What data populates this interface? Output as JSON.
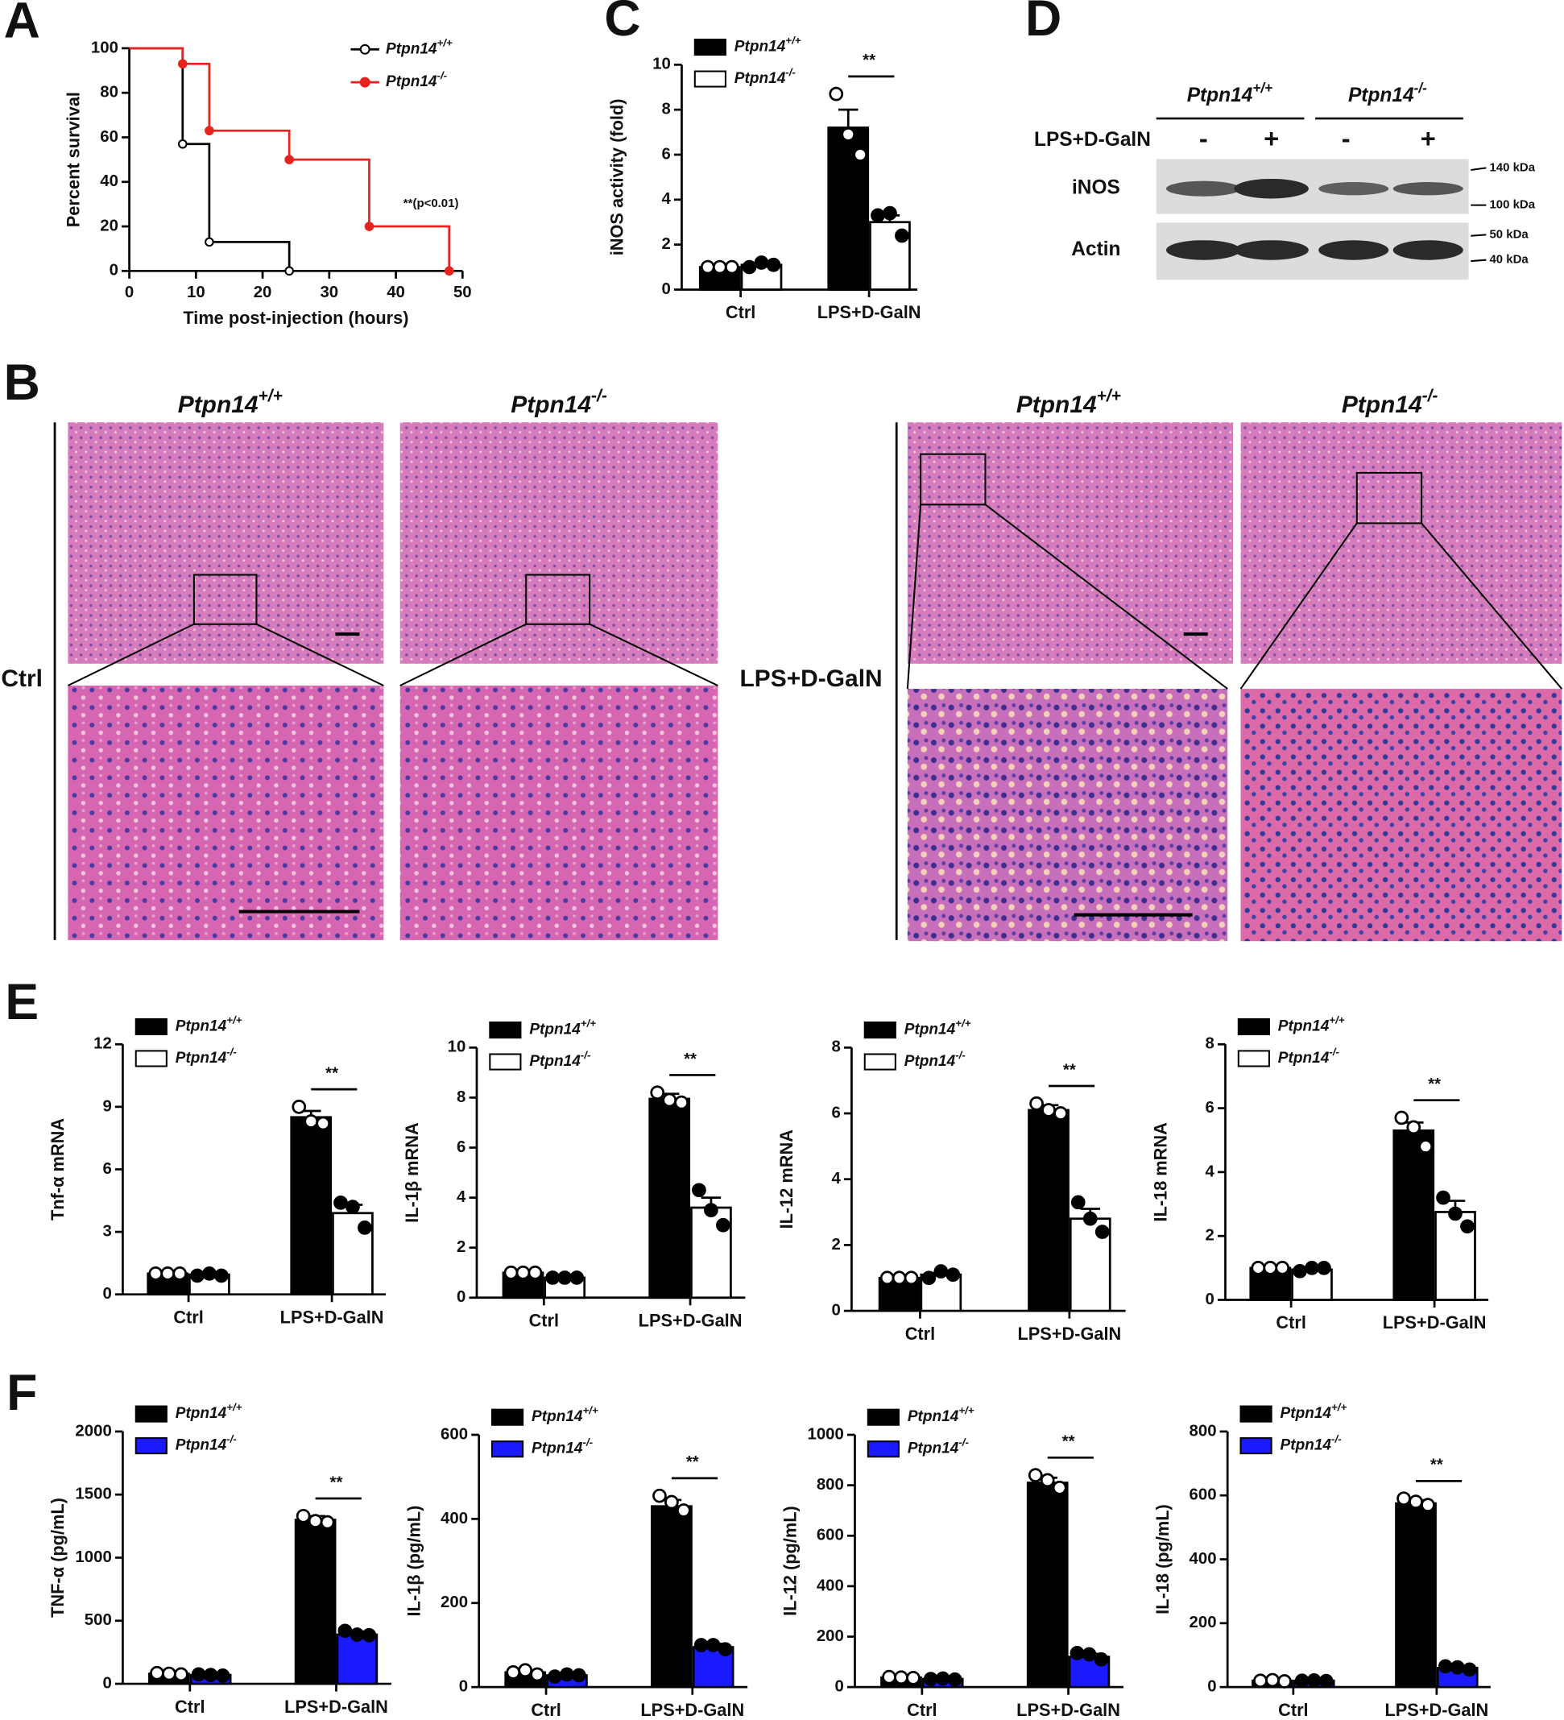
{
  "figure": {
    "panel_labels": [
      "A",
      "B",
      "C",
      "D",
      "E",
      "F"
    ]
  },
  "chart_data": [
    {
      "type": "line",
      "step": true,
      "xlabel": "Time post-injection (hours)",
      "ylabel": "Percent survival",
      "annotation": "**(p<0.01)",
      "xlim": [
        0,
        50
      ],
      "xticks": [
        0,
        10,
        20,
        30,
        40,
        50
      ],
      "ylim": [
        0,
        100
      ],
      "yticks": [
        0,
        20,
        40,
        60,
        80,
        100
      ],
      "series": [
        {
          "name": "Ptpn14+/+",
          "color": "#000000",
          "marker": "open",
          "x": [
            0,
            8,
            12,
            24
          ],
          "values": [
            100,
            57,
            13,
            0
          ]
        },
        {
          "name": "Ptpn14-/-",
          "color": "#e8221c",
          "marker": "filled",
          "x": [
            0,
            8,
            12,
            24,
            36,
            48
          ],
          "values": [
            100,
            93,
            63,
            50,
            20,
            0
          ]
        }
      ]
    },
    {
      "type": "bar",
      "ylabel": "iNOS activity (fold)",
      "significance": "**",
      "categories": [
        "Ctrl",
        "LPS+D-GalN"
      ],
      "ylim": [
        0,
        10
      ],
      "yticks": [
        0,
        2,
        4,
        6,
        8,
        10
      ],
      "series": [
        {
          "name": "Ptpn14+/+",
          "color": "#000000",
          "marker": "open",
          "values": [
            1,
            7.2
          ],
          "errors": [
            0.02,
            0.8
          ],
          "points": [
            [
              1,
              1,
              1
            ],
            [
              8.7,
              6.9,
              6.0
            ]
          ]
        },
        {
          "name": "Ptpn14-/-",
          "color": "#ffffff",
          "marker": "filled",
          "values": [
            1.1,
            3.0
          ],
          "errors": [
            0.05,
            0.3
          ],
          "points": [
            [
              1,
              1.2,
              1.1
            ],
            [
              3.3,
              3.4,
              2.4
            ]
          ]
        }
      ]
    },
    {
      "type": "bar",
      "ylabel": "Tnf-α mRNA",
      "significance": "**",
      "categories": [
        "Ctrl",
        "LPS+D-GalN"
      ],
      "ylim": [
        0,
        12
      ],
      "yticks": [
        0,
        3,
        6,
        9,
        12
      ],
      "series": [
        {
          "name": "Ptpn14+/+",
          "color": "#000000",
          "marker": "open",
          "values": [
            1,
            8.5
          ],
          "errors": [
            0.02,
            0.3
          ],
          "points": [
            [
              1,
              1,
              1
            ],
            [
              9,
              8.3,
              8.2
            ]
          ]
        },
        {
          "name": "Ptpn14-/-",
          "color": "#ffffff",
          "marker": "filled",
          "values": [
            0.95,
            3.9
          ],
          "errors": [
            0.05,
            0.4
          ],
          "points": [
            [
              0.9,
              1,
              0.9
            ],
            [
              4.4,
              4.2,
              3.2
            ]
          ]
        }
      ]
    },
    {
      "type": "bar",
      "ylabel": "IL-1β mRNA",
      "significance": "**",
      "categories": [
        "Ctrl",
        "LPS+D-GalN"
      ],
      "ylim": [
        0,
        10
      ],
      "yticks": [
        0,
        2,
        4,
        6,
        8,
        10
      ],
      "series": [
        {
          "name": "Ptpn14+/+",
          "color": "#000000",
          "marker": "open",
          "values": [
            1,
            7.95
          ],
          "errors": [
            0.02,
            0.2
          ],
          "points": [
            [
              1,
              1,
              1
            ],
            [
              8.2,
              7.9,
              7.8
            ]
          ]
        },
        {
          "name": "Ptpn14-/-",
          "color": "#ffffff",
          "marker": "filled",
          "values": [
            0.8,
            3.6
          ],
          "errors": [
            0.05,
            0.4
          ],
          "points": [
            [
              0.8,
              0.8,
              0.8
            ],
            [
              4.3,
              3.5,
              2.9
            ]
          ]
        }
      ]
    },
    {
      "type": "bar",
      "ylabel": "IL-12 mRNA",
      "significance": "**",
      "categories": [
        "Ctrl",
        "LPS+D-GalN"
      ],
      "ylim": [
        0,
        8
      ],
      "yticks": [
        0,
        2,
        4,
        6,
        8
      ],
      "series": [
        {
          "name": "Ptpn14+/+",
          "color": "#000000",
          "marker": "open",
          "values": [
            1,
            6.1
          ],
          "errors": [
            0.02,
            0.15
          ],
          "points": [
            [
              1,
              1,
              1
            ],
            [
              6.3,
              6.1,
              6.0
            ]
          ]
        },
        {
          "name": "Ptpn14-/-",
          "color": "#ffffff",
          "marker": "filled",
          "values": [
            1.1,
            2.8
          ],
          "errors": [
            0.05,
            0.3
          ],
          "points": [
            [
              1,
              1.2,
              1.1
            ],
            [
              3.3,
              2.8,
              2.4
            ]
          ]
        }
      ]
    },
    {
      "type": "bar",
      "ylabel": "IL-18 mRNA",
      "significance": "**",
      "categories": [
        "Ctrl",
        "LPS+D-GalN"
      ],
      "ylim": [
        0,
        8
      ],
      "yticks": [
        0,
        2,
        4,
        6,
        8
      ],
      "series": [
        {
          "name": "Ptpn14+/+",
          "color": "#000000",
          "marker": "open",
          "values": [
            1,
            5.3
          ],
          "errors": [
            0.02,
            0.25
          ],
          "points": [
            [
              1,
              1,
              1
            ],
            [
              5.7,
              5.4,
              4.8
            ]
          ]
        },
        {
          "name": "Ptpn14-/-",
          "color": "#ffffff",
          "marker": "filled",
          "values": [
            0.95,
            2.75
          ],
          "errors": [
            0.05,
            0.35
          ],
          "points": [
            [
              0.9,
              1,
              1
            ],
            [
              3.2,
              2.7,
              2.3
            ]
          ]
        }
      ]
    },
    {
      "type": "bar",
      "ylabel": "TNF-α (pg/mL)",
      "significance": "**",
      "categories": [
        "Ctrl",
        "LPS+D-GalN"
      ],
      "ylim": [
        0,
        2000
      ],
      "yticks": [
        0,
        500,
        1000,
        1500,
        2000
      ],
      "series": [
        {
          "name": "Ptpn14+/+",
          "color": "#000000",
          "marker": "open",
          "values": [
            80,
            1300
          ],
          "errors": [
            10,
            30
          ],
          "points": [
            [
              85,
              80,
              75
            ],
            [
              1330,
              1290,
              1280
            ]
          ]
        },
        {
          "name": "Ptpn14-/-",
          "color": "#1a1aff",
          "marker": "filled",
          "values": [
            70,
            390
          ],
          "errors": [
            10,
            25
          ],
          "points": [
            [
              75,
              70,
              65
            ],
            [
              420,
              390,
              385
            ]
          ]
        }
      ]
    },
    {
      "type": "bar",
      "ylabel": "IL-1β (pg/mL)",
      "significance": "**",
      "categories": [
        "Ctrl",
        "LPS+D-GalN"
      ],
      "ylim": [
        0,
        600
      ],
      "yticks": [
        0,
        200,
        400,
        600
      ],
      "series": [
        {
          "name": "Ptpn14+/+",
          "color": "#000000",
          "marker": "open",
          "values": [
            35,
            430
          ],
          "errors": [
            5,
            15
          ],
          "points": [
            [
              35,
              40,
              30
            ],
            [
              455,
              440,
              420
            ]
          ]
        },
        {
          "name": "Ptpn14-/-",
          "color": "#1a1aff",
          "marker": "filled",
          "values": [
            28,
            95
          ],
          "errors": [
            4,
            8
          ],
          "points": [
            [
              25,
              30,
              28
            ],
            [
              100,
              100,
              90
            ]
          ]
        }
      ]
    },
    {
      "type": "bar",
      "ylabel": "IL-12 (pg/mL)",
      "significance": "**",
      "categories": [
        "Ctrl",
        "LPS+D-GalN"
      ],
      "ylim": [
        0,
        1000
      ],
      "yticks": [
        0,
        200,
        400,
        600,
        800,
        1000
      ],
      "series": [
        {
          "name": "Ptpn14+/+",
          "color": "#000000",
          "marker": "open",
          "values": [
            38,
            810
          ],
          "errors": [
            5,
            20
          ],
          "points": [
            [
              40,
              38,
              36
            ],
            [
              840,
              820,
              790
            ]
          ]
        },
        {
          "name": "Ptpn14-/-",
          "color": "#1a1aff",
          "marker": "filled",
          "values": [
            32,
            120
          ],
          "errors": [
            4,
            12
          ],
          "points": [
            [
              32,
              34,
              30
            ],
            [
              135,
              130,
              110
            ]
          ]
        }
      ]
    },
    {
      "type": "bar",
      "ylabel": "IL-18 (pg/mL)",
      "significance": "**",
      "categories": [
        "Ctrl",
        "LPS+D-GalN"
      ],
      "ylim": [
        0,
        800
      ],
      "yticks": [
        0,
        200,
        400,
        600,
        800
      ],
      "series": [
        {
          "name": "Ptpn14+/+",
          "color": "#000000",
          "marker": "open",
          "values": [
            20,
            575
          ],
          "errors": [
            3,
            10
          ],
          "points": [
            [
              20,
              22,
              18
            ],
            [
              590,
              580,
              570
            ]
          ]
        },
        {
          "name": "Ptpn14-/-",
          "color": "#1a1aff",
          "marker": "filled",
          "values": [
            20,
            60
          ],
          "errors": [
            3,
            6
          ],
          "points": [
            [
              20,
              21,
              19
            ],
            [
              65,
              62,
              55
            ]
          ]
        }
      ]
    }
  ],
  "histology": {
    "genotypes": [
      "Ptpn14+/+",
      "Ptpn14-/-",
      "Ptpn14+/+",
      "Ptpn14-/-"
    ],
    "conditions": [
      "Ctrl",
      "LPS+D-GalN"
    ]
  },
  "western_blot": {
    "genotypes": [
      "Ptpn14+/+",
      "Ptpn14-/-"
    ],
    "treatment_label": "LPS+D-GalN",
    "treatment_signs": [
      "-",
      "+",
      "-",
      "+"
    ],
    "bands": [
      "iNOS",
      "Actin"
    ],
    "markers": [
      "140 kDa",
      "100 kDa",
      "50 kDa",
      "40 kDa"
    ]
  }
}
